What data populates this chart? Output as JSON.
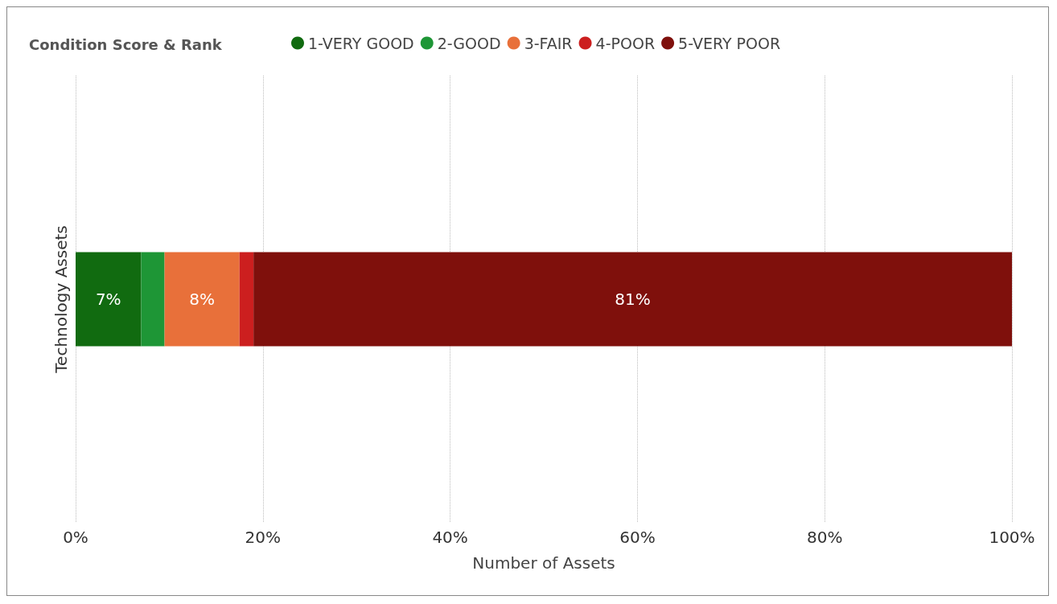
{
  "chart_data": {
    "type": "bar",
    "orientation": "horizontal",
    "stacked": true,
    "legend_title": "Condition Score & Rank",
    "xlabel": "Number of Assets",
    "categories": [
      "Technology Assets"
    ],
    "series": [
      {
        "name": "1-VERY GOOD",
        "color": "#116b10",
        "values": [
          7
        ],
        "value_labels": [
          "7%"
        ]
      },
      {
        "name": "2-GOOD",
        "color": "#1e9636",
        "values": [
          2.5
        ],
        "value_labels": [
          null
        ]
      },
      {
        "name": "3-FAIR",
        "color": "#e8703a",
        "values": [
          8
        ],
        "value_labels": [
          "8%"
        ]
      },
      {
        "name": "4-POOR",
        "color": "#cc1f1f",
        "values": [
          1.5
        ],
        "value_labels": [
          null
        ]
      },
      {
        "name": "5-VERY POOR",
        "color": "#7f100c",
        "values": [
          81
        ],
        "value_labels": [
          "81%"
        ]
      }
    ],
    "xlim": [
      0,
      100
    ],
    "xticks": [
      {
        "value": 0,
        "label": "0%"
      },
      {
        "value": 20,
        "label": "20%"
      },
      {
        "value": 40,
        "label": "40%"
      },
      {
        "value": 60,
        "label": "60%"
      },
      {
        "value": 80,
        "label": "80%"
      },
      {
        "value": 100,
        "label": "100%"
      }
    ],
    "grid": "x",
    "legend": "top left"
  }
}
